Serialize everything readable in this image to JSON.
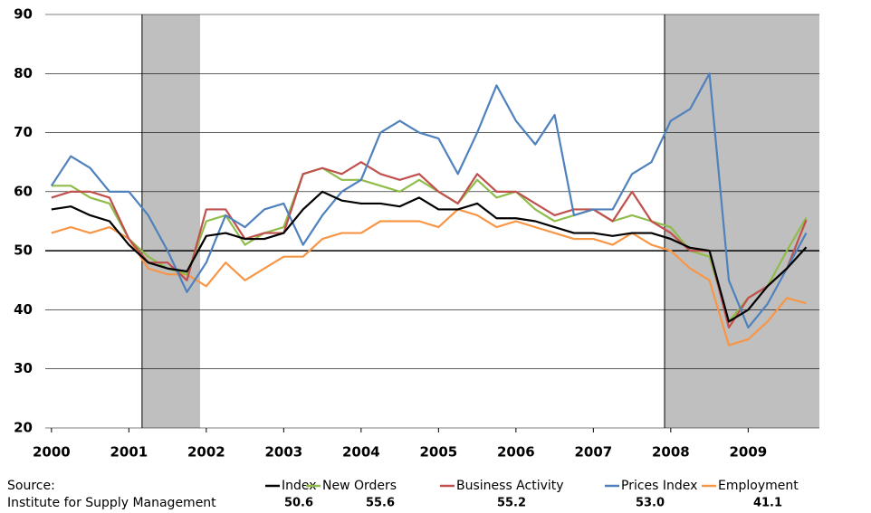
{
  "chart_data": {
    "type": "line",
    "source_label": "Source:",
    "source": "Institute for Supply Management",
    "x": [
      2000,
      2000.25,
      2000.5,
      2000.75,
      2001,
      2001.25,
      2001.5,
      2001.75,
      2002,
      2002.25,
      2002.5,
      2002.75,
      2003,
      2003.25,
      2003.5,
      2003.75,
      2004,
      2004.25,
      2004.5,
      2004.75,
      2005,
      2005.25,
      2005.5,
      2005.75,
      2006,
      2006.25,
      2006.5,
      2006.75,
      2007,
      2007.25,
      2007.5,
      2007.75,
      2008,
      2008.25,
      2008.5,
      2008.75,
      2009,
      2009.25,
      2009.5,
      2009.75
    ],
    "xlim": [
      1999.92,
      2009.92
    ],
    "xticks": [
      2000,
      2001,
      2002,
      2003,
      2004,
      2005,
      2006,
      2007,
      2008,
      2009
    ],
    "ylim": [
      20,
      90
    ],
    "yticks": [
      20,
      30,
      40,
      50,
      60,
      70,
      80,
      90
    ],
    "grid": true,
    "reference_line": 50,
    "recessions": [
      [
        2001.17,
        2001.92
      ],
      [
        2007.92,
        2009.92
      ]
    ],
    "series": [
      {
        "name": "Index",
        "color": "#000000",
        "latest": "50.6",
        "values": [
          57,
          57.5,
          56,
          55,
          51,
          48,
          47,
          46.5,
          52.5,
          53,
          52,
          52,
          53,
          57,
          60,
          58.5,
          58,
          58,
          57.5,
          59,
          57,
          57,
          58,
          55.5,
          55.5,
          55,
          54,
          53,
          53,
          52.5,
          53,
          53,
          52,
          50.5,
          50,
          38,
          40,
          44,
          47,
          50.6
        ]
      },
      {
        "name": "New Orders",
        "color": "#8fbc4a",
        "latest": "55.6",
        "values": [
          61,
          61,
          59,
          58,
          52,
          49,
          47,
          46,
          55,
          56,
          51,
          53,
          54,
          63,
          64,
          62,
          62,
          61,
          60,
          62,
          60,
          58,
          62,
          59,
          60,
          57,
          55,
          56,
          57,
          55,
          56,
          55,
          54,
          50,
          49,
          38,
          42,
          44,
          50,
          55.6
        ]
      },
      {
        "name": "Business Activity",
        "color": "#c0504d",
        "latest": "55.2",
        "values": [
          59,
          60,
          60,
          59,
          52,
          48,
          48,
          45,
          57,
          57,
          52,
          53,
          53,
          63,
          64,
          63,
          65,
          63,
          62,
          63,
          60,
          58,
          63,
          60,
          60,
          58,
          56,
          57,
          57,
          55,
          60,
          55,
          53,
          50,
          50,
          37,
          42,
          44,
          47,
          55.2
        ]
      },
      {
        "name": "Prices Index",
        "color": "#4f81bd",
        "latest": "53.0",
        "values": [
          61,
          66,
          64,
          60,
          60,
          56,
          50,
          43,
          48,
          56,
          54,
          57,
          58,
          51,
          56,
          60,
          62,
          70,
          72,
          70,
          69,
          63,
          70,
          78,
          72,
          68,
          73,
          56,
          57,
          57,
          63,
          65,
          72,
          74,
          80,
          45,
          37,
          41,
          47,
          53
        ]
      },
      {
        "name": "Employment",
        "color": "#f79646",
        "latest": "41.1",
        "values": [
          53,
          54,
          53,
          54,
          52,
          47,
          46,
          46,
          44,
          48,
          45,
          47,
          49,
          49,
          52,
          53,
          53,
          55,
          55,
          55,
          54,
          57,
          56,
          54,
          55,
          54,
          53,
          52,
          52,
          51,
          53,
          51,
          50,
          47,
          45,
          34,
          35,
          38,
          42,
          41.1
        ]
      }
    ]
  }
}
